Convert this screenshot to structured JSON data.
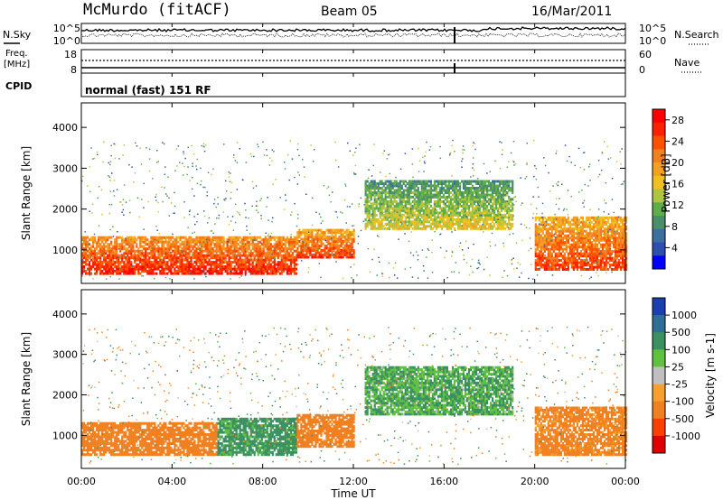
{
  "header": {
    "station": "McMurdo (fitACF)",
    "beam": "Beam 05",
    "date": "16/Mar/2011"
  },
  "left_labels": {
    "nsky": "N.Sky",
    "freq_line1": "Freq.",
    "freq_line2": "[MHz]",
    "cpid": "CPID"
  },
  "right_labels": {
    "nsearch": "N.Search",
    "nave": "Nave"
  },
  "noise_axis": {
    "left_top": "10^5",
    "left_bottom": "10^0",
    "right_top": "10^5",
    "right_bottom": "10^0"
  },
  "freq_axis": {
    "left_top": "18",
    "left_bottom": "8",
    "right_top": "60",
    "right_bottom": "0"
  },
  "cpid_text": "normal (fast) 151 RF",
  "x_axis": {
    "label": "Time UT",
    "ticks": [
      "00:00",
      "04:00",
      "08:00",
      "12:00",
      "16:00",
      "20:00",
      "00:00"
    ]
  },
  "colors": {
    "power_scale": [
      "#0000ff",
      "#2e4fb2",
      "#3a6fa0",
      "#4a8f6a",
      "#5fae4a",
      "#b0c440",
      "#f0c020",
      "#f5a020",
      "#f08020",
      "#ff5000",
      "#ff2000",
      "#ff0000"
    ],
    "velocity_scale": [
      "#e00000",
      "#ff4000",
      "#f08020",
      "#f5a030",
      "#c0c0c0",
      "#60c040",
      "#3a9060",
      "#2e6f9a",
      "#1a3fb0"
    ]
  },
  "chart_data": [
    {
      "type": "heatmap",
      "panel": "power",
      "ylabel": "Slant Range [km]",
      "yticks": [
        "1000",
        "2000",
        "3000",
        "4000"
      ],
      "ylim": [
        180,
        4600
      ],
      "xlim_hours": [
        0,
        24
      ],
      "colorbar": {
        "label": "Power [dB]",
        "ticks": [
          "4",
          "8",
          "12",
          "16",
          "20",
          "24",
          "28"
        ],
        "range": [
          0,
          30
        ]
      },
      "features": [
        {
          "time_h": [
            0,
            9.5
          ],
          "range_km": [
            400,
            1300
          ],
          "value_db": 28
        },
        {
          "time_h": [
            9.5,
            12
          ],
          "range_km": [
            800,
            1500
          ],
          "value_db": 26
        },
        {
          "time_h": [
            12.5,
            19
          ],
          "range_km": [
            1500,
            2700
          ],
          "value_db": 16
        },
        {
          "time_h": [
            20,
            24
          ],
          "range_km": [
            500,
            1800
          ],
          "value_db": 26
        }
      ]
    },
    {
      "type": "heatmap",
      "panel": "velocity",
      "ylabel": "Slant Range [km]",
      "yticks": [
        "1000",
        "2000",
        "3000",
        "4000"
      ],
      "ylim": [
        180,
        4600
      ],
      "xlim_hours": [
        0,
        24
      ],
      "colorbar": {
        "label": "Velocity [m s-1]",
        "ticks": [
          "1000",
          "500",
          "100",
          "25",
          "-25",
          "-100",
          "-500",
          "-1000"
        ]
      },
      "features": [
        {
          "time_h": [
            0,
            6
          ],
          "range_km": [
            500,
            1300
          ],
          "value_ms": -200
        },
        {
          "time_h": [
            6,
            9.5
          ],
          "range_km": [
            500,
            1400
          ],
          "value_ms": 150
        },
        {
          "time_h": [
            9.5,
            12
          ],
          "range_km": [
            700,
            1500
          ],
          "value_ms": -200
        },
        {
          "time_h": [
            12.5,
            19
          ],
          "range_km": [
            1500,
            2700
          ],
          "value_ms": 100
        },
        {
          "time_h": [
            20,
            24
          ],
          "range_km": [
            500,
            1700
          ],
          "value_ms": -150
        }
      ]
    }
  ]
}
